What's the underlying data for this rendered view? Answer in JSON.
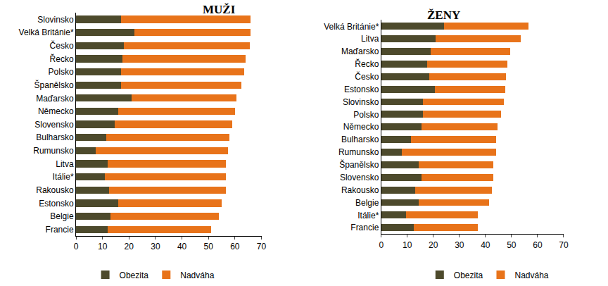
{
  "chart_data": [
    {
      "type": "bar",
      "title": "MUŽI",
      "orientation": "horizontal",
      "stacked": true,
      "legend": "bottom",
      "grid": false,
      "categories": [
        "Slovinsko",
        "Velká Británie*",
        "Česko",
        "Řecko",
        "Polsko",
        "Španělsko",
        "Maďarsko",
        "Německo",
        "Slovensko",
        "Bulharsko",
        "Rumunsko",
        "Litva",
        "Itálie*",
        "Rakousko",
        "Estonsko",
        "Belgie",
        "Francie"
      ],
      "series": [
        {
          "name": "Obezita",
          "color": "#4d4a2c",
          "values": [
            17,
            22,
            18,
            17.5,
            17,
            17,
            21,
            16,
            14.5,
            11.5,
            7.5,
            12,
            11,
            12.5,
            16,
            13,
            12
          ]
        },
        {
          "name": "Nadváha",
          "color": "#e8731a",
          "values": [
            49,
            44,
            47.5,
            46.5,
            46.5,
            45.5,
            39.5,
            44,
            44.5,
            46.5,
            50,
            44.5,
            45.5,
            44,
            39,
            41,
            39
          ]
        }
      ],
      "xlim": [
        0,
        70
      ],
      "xticks": [
        0,
        10,
        20,
        30,
        40,
        50,
        60,
        70
      ]
    },
    {
      "type": "bar",
      "title": "ŽENY",
      "orientation": "horizontal",
      "stacked": true,
      "legend": "bottom",
      "grid": false,
      "categories": [
        "Velká Británie*",
        "Litva",
        "Maďarsko",
        "Řecko",
        "Česko",
        "Estonsko",
        "Slovinsko",
        "Polsko",
        "Německo",
        "Bulharsko",
        "Rumunsko",
        "Španělsko",
        "Slovensko",
        "Rakousko",
        "Belgie",
        "Itálie*",
        "Francie"
      ],
      "series": [
        {
          "name": "Obezita",
          "color": "#4d4a2c",
          "values": [
            24,
            21,
            19,
            17.5,
            18.5,
            20.5,
            16,
            16,
            15.5,
            11.5,
            8,
            14.5,
            15.5,
            13,
            14.5,
            9.5,
            12.5
          ]
        },
        {
          "name": "Nadváha",
          "color": "#e8731a",
          "values": [
            32.5,
            32.5,
            30.5,
            31,
            29.5,
            27,
            31,
            30,
            29,
            32.5,
            36,
            28.5,
            27.5,
            29.5,
            27,
            27.5,
            24.5
          ]
        }
      ],
      "xlim": [
        0,
        70
      ],
      "xticks": [
        0,
        10,
        20,
        30,
        40,
        50,
        60,
        70
      ]
    }
  ]
}
